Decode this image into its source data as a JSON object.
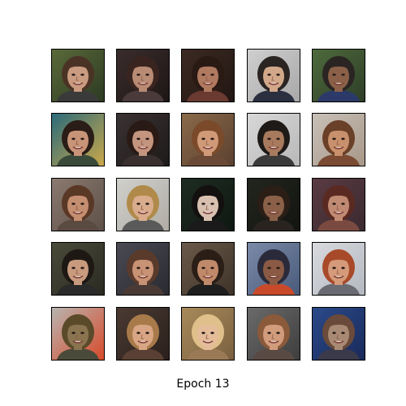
{
  "caption": "Epoch 13",
  "grid": {
    "rows": 5,
    "cols": 5,
    "faces": [
      {
        "bg": "#5a6a3a",
        "bg2": "#2c3a22",
        "hair": "#4a3325",
        "skin": "#c99b80",
        "shirt": "#3a3a3a"
      },
      {
        "bg": "#3a2c2c",
        "bg2": "#1e1616",
        "hair": "#3a2420",
        "skin": "#b98b74",
        "shirt": "#4a3a3a"
      },
      {
        "bg": "#3c2a22",
        "bg2": "#221612",
        "hair": "#2a1a14",
        "skin": "#b07a60",
        "shirt": "#6a3a30"
      },
      {
        "bg": "#cfcfcf",
        "bg2": "#a8a8a8",
        "hair": "#2a2422",
        "skin": "#d2a88a",
        "shirt": "#2a3040"
      },
      {
        "bg": "#4e6a3c",
        "bg2": "#2e3e28",
        "hair": "#2a2422",
        "skin": "#8a6048",
        "shirt": "#2c3a6a"
      },
      {
        "bg": "#2a6a7a",
        "bg2": "#caa84a",
        "hair": "#2a1c16",
        "skin": "#c89478",
        "shirt": "#3a4a3a"
      },
      {
        "bg": "#3a3232",
        "bg2": "#1e1a1a",
        "hair": "#2a1a16",
        "skin": "#c4957e",
        "shirt": "#3a3030"
      },
      {
        "bg": "#8a6a4a",
        "bg2": "#5a4030",
        "hair": "#7a4a2a",
        "skin": "#d09a78",
        "shirt": "#6a4a36"
      },
      {
        "bg": "#d8d8d8",
        "bg2": "#b8b8b8",
        "hair": "#1e1a18",
        "skin": "#a87a5e",
        "shirt": "#3a3a3a"
      },
      {
        "bg": "#c8c0b8",
        "bg2": "#a89888",
        "hair": "#6a4028",
        "skin": "#c8906c",
        "shirt": "#7a4a32"
      },
      {
        "bg": "#8a7a70",
        "bg2": "#5e5048",
        "hair": "#5a3826",
        "skin": "#c48e70",
        "shirt": "#5a4a40"
      },
      {
        "bg": "#d0d0cc",
        "bg2": "#b0aca4",
        "hair": "#b08a4a",
        "skin": "#d8ac8c",
        "shirt": "#5a5a5a"
      },
      {
        "bg": "#1e2c22",
        "bg2": "#0e1812",
        "hair": "#141010",
        "skin": "#d8c0b0",
        "shirt": "#1a1a1a"
      },
      {
        "bg": "#22261e",
        "bg2": "#121410",
        "hair": "#2a1e16",
        "skin": "#8a6048",
        "shirt": "#2a2420"
      },
      {
        "bg": "#5a3a42",
        "bg2": "#3a2a30",
        "hair": "#5a2a22",
        "skin": "#c08a72",
        "shirt": "#7a4a40"
      },
      {
        "bg": "#4a4a3a",
        "bg2": "#2a2a22",
        "hair": "#1e1814",
        "skin": "#c89a7e",
        "shirt": "#2a2a2a"
      },
      {
        "bg": "#4a4a52",
        "bg2": "#2a2a32",
        "hair": "#5a3a2a",
        "skin": "#c89274",
        "shirt": "#4a3a36"
      },
      {
        "bg": "#6a5a4a",
        "bg2": "#3e3228",
        "hair": "#2a1e16",
        "skin": "#c08a6a",
        "shirt": "#1e1e1e"
      },
      {
        "bg": "#7a8aa8",
        "bg2": "#4a5a7a",
        "hair": "#2a2a3a",
        "skin": "#8a5a44",
        "shirt": "#c84a2a"
      },
      {
        "bg": "#d8dade",
        "bg2": "#b4b8c0",
        "hair": "#a84a2a",
        "skin": "#d49a7a",
        "shirt": "#6a6a72"
      },
      {
        "bg": "#b8b4b0",
        "bg2": "#d84a2a",
        "hair": "#5a4a2a",
        "skin": "#8a7450",
        "shirt": "#4a4a3a"
      },
      {
        "bg": "#4a3a32",
        "bg2": "#2a201c",
        "hair": "#a87a4a",
        "skin": "#d8a684",
        "shirt": "#5a4034"
      },
      {
        "bg": "#a88a5a",
        "bg2": "#7a6040",
        "hair": "#e0c08a",
        "skin": "#e4bc9a",
        "shirt": "#9a7a56"
      },
      {
        "bg": "#6a6a6a",
        "bg2": "#3e3e3e",
        "hair": "#8a5a3a",
        "skin": "#d09c7c",
        "shirt": "#5a4a44"
      },
      {
        "bg": "#2a4a8a",
        "bg2": "#1a2a5a",
        "hair": "#6a4a3a",
        "skin": "#a88a74",
        "shirt": "#3a3a4a"
      }
    ]
  }
}
